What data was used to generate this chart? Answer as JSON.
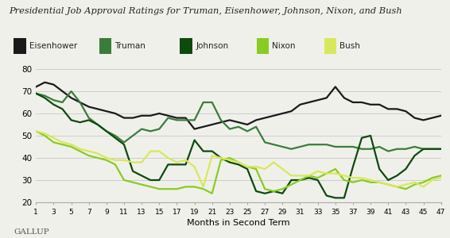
{
  "title": "Presidential Job Approval Ratings for Truman, Eisenhower, Johnson, Nixon, and Bush",
  "xlabel": "Months in Second Term",
  "gallup_label": "GALLUP",
  "ylim": [
    20,
    80
  ],
  "yticks": [
    20,
    30,
    40,
    50,
    60,
    70,
    80
  ],
  "xticks": [
    1,
    3,
    5,
    7,
    9,
    11,
    13,
    15,
    17,
    19,
    21,
    23,
    25,
    27,
    29,
    31,
    33,
    35,
    37,
    39,
    41,
    43,
    45,
    47
  ],
  "series": {
    "Eisenhower": {
      "color": "#1a1a1a",
      "linewidth": 1.6,
      "x": [
        1,
        2,
        3,
        4,
        5,
        6,
        7,
        8,
        9,
        10,
        11,
        12,
        13,
        14,
        15,
        16,
        17,
        18,
        19,
        20,
        21,
        22,
        23,
        24,
        25,
        26,
        27,
        28,
        29,
        30,
        31,
        32,
        33,
        34,
        35,
        36,
        37,
        38,
        39,
        40,
        41,
        42,
        43,
        44,
        45,
        46,
        47
      ],
      "y": [
        72,
        74,
        73,
        70,
        67,
        65,
        63,
        62,
        61,
        60,
        58,
        58,
        59,
        59,
        60,
        59,
        58,
        58,
        53,
        54,
        55,
        56,
        57,
        56,
        55,
        57,
        58,
        59,
        60,
        61,
        64,
        65,
        66,
        67,
        72,
        67,
        65,
        65,
        64,
        64,
        62,
        62,
        61,
        58,
        57,
        58,
        59
      ]
    },
    "Truman": {
      "color": "#3a7d3a",
      "linewidth": 1.6,
      "x": [
        1,
        2,
        3,
        4,
        5,
        6,
        7,
        8,
        9,
        10,
        11,
        12,
        13,
        14,
        15,
        16,
        17,
        18,
        19,
        20,
        21,
        22,
        23,
        24,
        25,
        26,
        27,
        28,
        29,
        30,
        31,
        32,
        33,
        34,
        35,
        36,
        37,
        38,
        39,
        40,
        41,
        42,
        43,
        44,
        45,
        46,
        47
      ],
      "y": [
        69,
        68,
        66,
        65,
        70,
        65,
        58,
        55,
        52,
        50,
        47,
        50,
        53,
        52,
        53,
        58,
        57,
        57,
        57,
        65,
        65,
        57,
        53,
        54,
        52,
        54,
        47,
        46,
        45,
        44,
        45,
        46,
        46,
        46,
        45,
        45,
        45,
        44,
        44,
        45,
        43,
        44,
        44,
        45,
        44,
        44,
        44
      ]
    },
    "Johnson": {
      "color": "#0d4a0d",
      "linewidth": 1.6,
      "x": [
        1,
        2,
        3,
        4,
        5,
        6,
        7,
        8,
        9,
        10,
        11,
        12,
        13,
        14,
        15,
        16,
        17,
        18,
        19,
        20,
        21,
        22,
        23,
        24,
        25,
        26,
        27,
        28,
        29,
        30,
        31,
        32,
        33,
        34,
        35,
        36,
        37,
        38,
        39,
        40,
        41,
        42,
        43,
        44,
        45,
        46,
        47
      ],
      "y": [
        69,
        67,
        64,
        62,
        57,
        56,
        57,
        55,
        52,
        49,
        46,
        34,
        32,
        30,
        30,
        37,
        37,
        37,
        48,
        43,
        43,
        40,
        38,
        37,
        35,
        25,
        24,
        25,
        24,
        30,
        30,
        31,
        30,
        23,
        22,
        22,
        36,
        49,
        50,
        35,
        30,
        32,
        35,
        41,
        44,
        44,
        44
      ]
    },
    "Nixon": {
      "color": "#88cc22",
      "linewidth": 1.6,
      "x": [
        1,
        2,
        3,
        4,
        5,
        6,
        7,
        8,
        9,
        10,
        11,
        12,
        13,
        14,
        15,
        16,
        17,
        18,
        19,
        20,
        21,
        22,
        23,
        24,
        25,
        26,
        27,
        28,
        29,
        30,
        31,
        32,
        33,
        34,
        35,
        36,
        37,
        38,
        39,
        40,
        41,
        42,
        43,
        44,
        45,
        46,
        47
      ],
      "y": [
        52,
        50,
        47,
        46,
        45,
        43,
        41,
        40,
        39,
        37,
        30,
        29,
        28,
        27,
        26,
        26,
        26,
        27,
        27,
        26,
        24,
        39,
        40,
        38,
        36,
        35,
        26,
        25,
        26,
        28,
        30,
        32,
        31,
        33,
        35,
        30,
        29,
        30,
        29,
        29,
        28,
        27,
        26,
        28,
        29,
        31,
        32
      ]
    },
    "Bush": {
      "color": "#d8e85a",
      "linewidth": 1.6,
      "x": [
        1,
        2,
        3,
        4,
        5,
        6,
        7,
        8,
        9,
        10,
        11,
        12,
        13,
        14,
        15,
        16,
        17,
        18,
        19,
        20,
        21,
        22,
        23,
        24,
        25,
        26,
        27,
        28,
        29,
        30,
        31,
        32,
        33,
        34,
        35,
        36,
        37,
        38,
        39,
        40,
        41,
        42,
        43,
        44,
        45,
        46,
        47
      ],
      "y": [
        52,
        51,
        49,
        47,
        46,
        44,
        43,
        42,
        40,
        39,
        39,
        38,
        38,
        43,
        43,
        40,
        38,
        39,
        36,
        27,
        41,
        40,
        39,
        38,
        36,
        36,
        35,
        38,
        35,
        32,
        32,
        32,
        34,
        33,
        33,
        32,
        31,
        31,
        30,
        29,
        28,
        27,
        28,
        29,
        27,
        30,
        31
      ]
    }
  },
  "legend_order": [
    "Eisenhower",
    "Truman",
    "Johnson",
    "Nixon",
    "Bush"
  ],
  "bg_color": "#f0f0eb",
  "grid_color": "#cccccc"
}
